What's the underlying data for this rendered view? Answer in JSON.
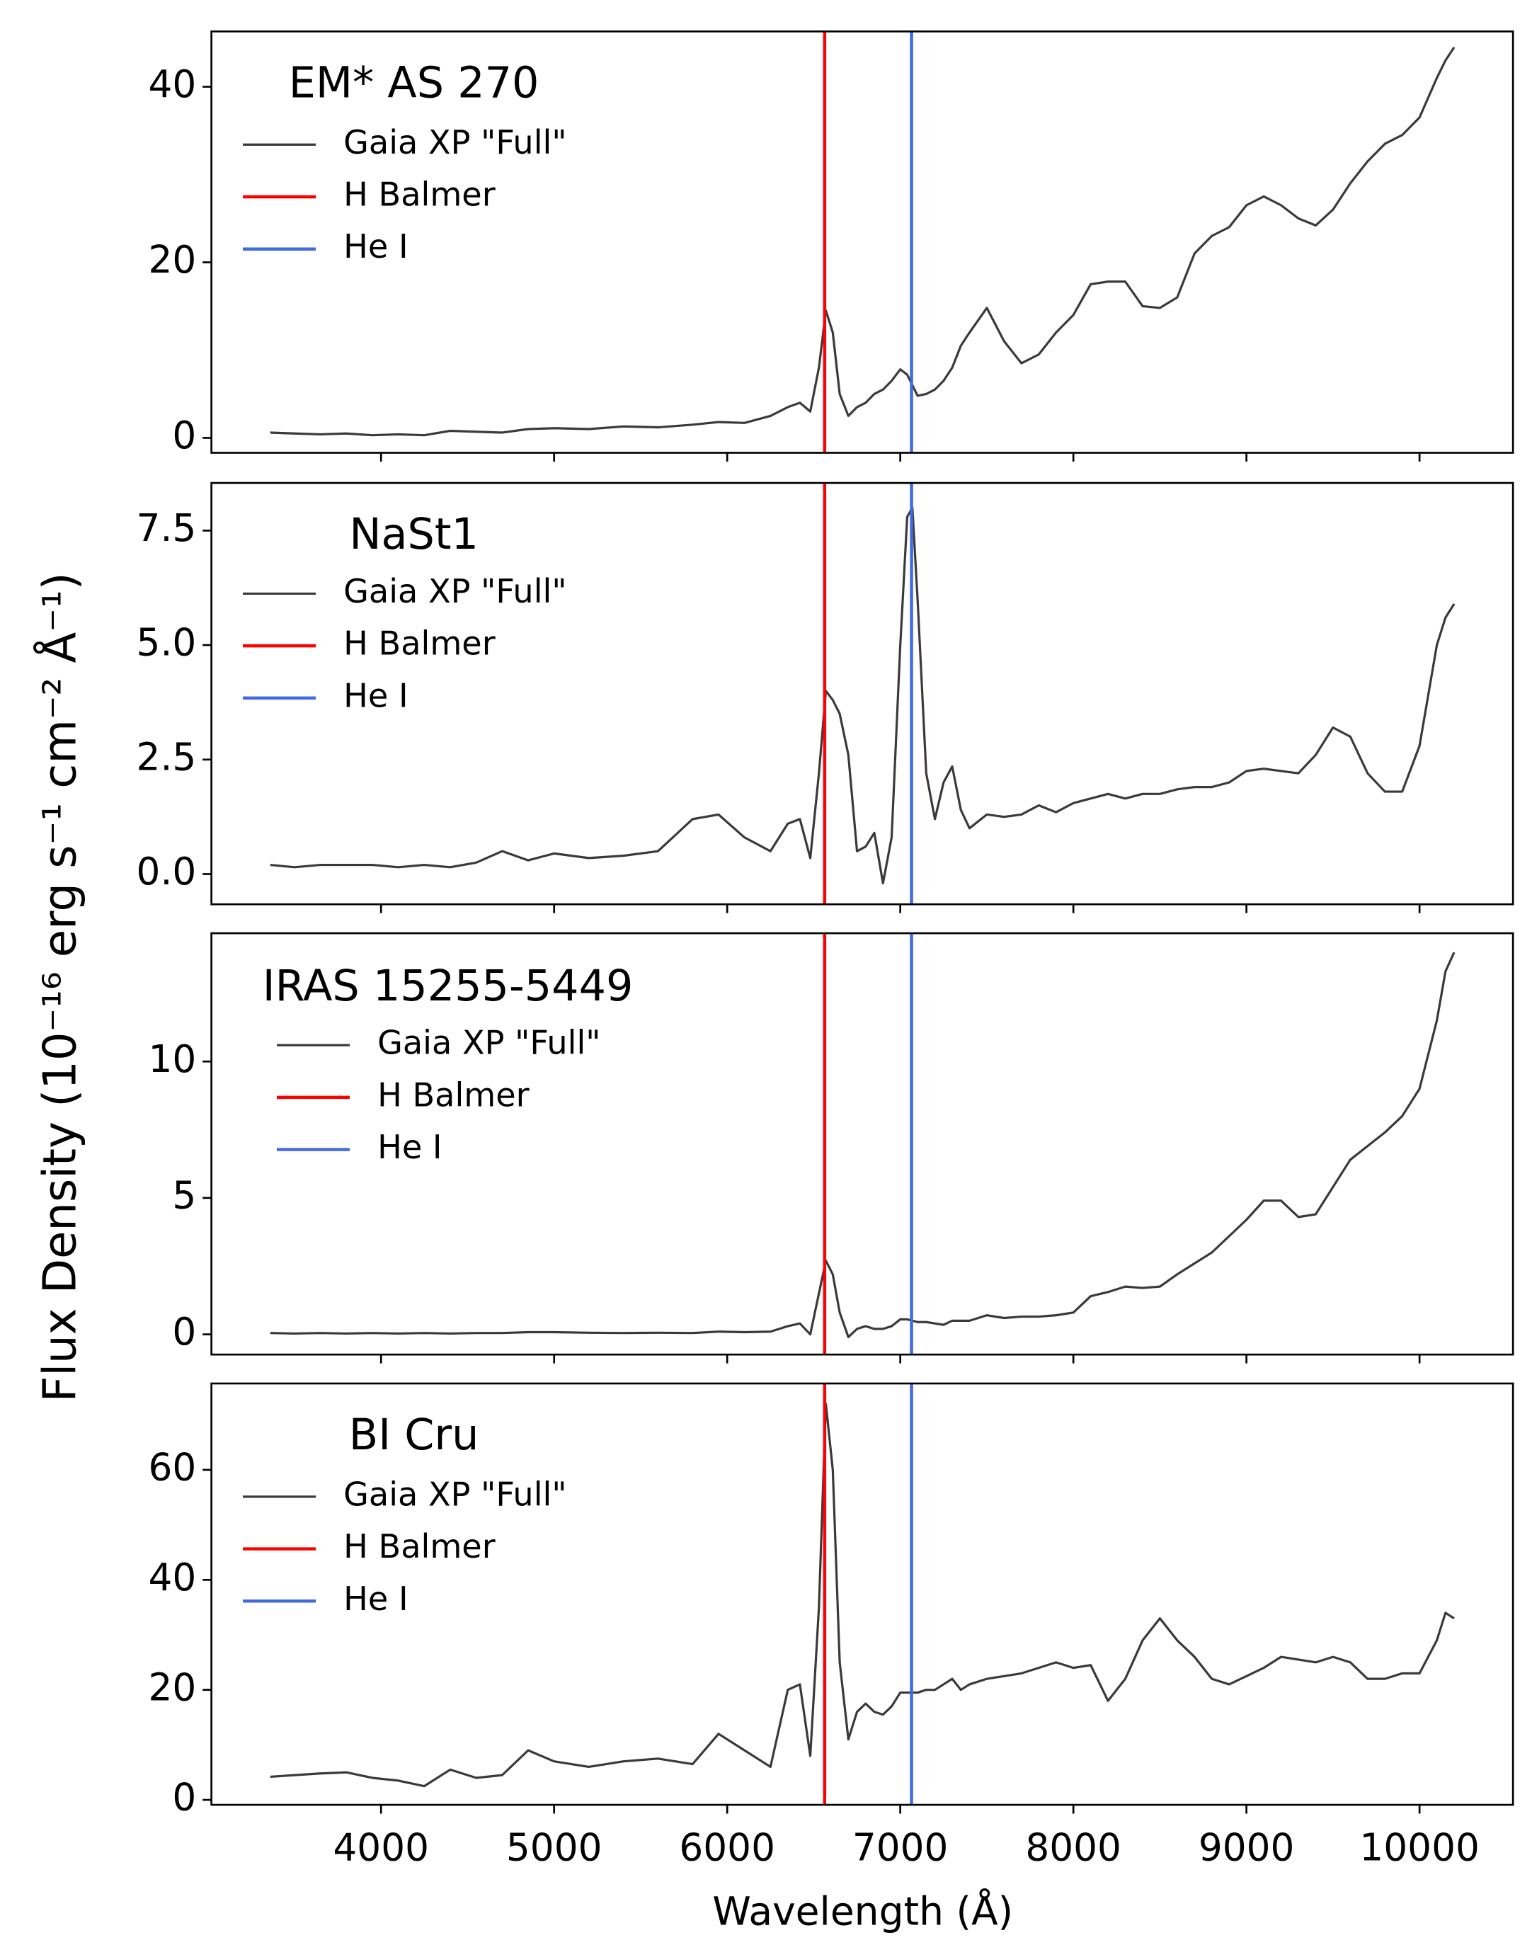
{
  "xlabel": "Wavelength (Å)",
  "ylabel": "Flux Density (10⁻¹⁶ erg s⁻¹ cm⁻² Å⁻¹)",
  "chart_data": [
    {
      "type": "line",
      "title": "EM* AS 270",
      "legend_loc": "upper left",
      "xlim": [
        3020,
        10540
      ],
      "xticks": [
        4000,
        5000,
        6000,
        7000,
        8000,
        9000,
        10000
      ],
      "ylim": [
        -1.7,
        46.3
      ],
      "yticks": [
        0,
        20,
        40
      ],
      "x": [
        3360,
        3500,
        3650,
        3800,
        3950,
        4100,
        4250,
        4400,
        4550,
        4700,
        4850,
        5000,
        5200,
        5400,
        5600,
        5800,
        5950,
        6100,
        6250,
        6350,
        6420,
        6480,
        6530,
        6570,
        6610,
        6650,
        6700,
        6750,
        6800,
        6850,
        6900,
        6950,
        7000,
        7040,
        7070,
        7100,
        7150,
        7200,
        7250,
        7300,
        7350,
        7400,
        7500,
        7600,
        7700,
        7800,
        7900,
        8000,
        8100,
        8200,
        8300,
        8400,
        8500,
        8600,
        8700,
        8800,
        8900,
        9000,
        9100,
        9200,
        9300,
        9400,
        9500,
        9600,
        9700,
        9800,
        9900,
        10000,
        10100,
        10150,
        10200
      ],
      "series": [
        {
          "name": "Gaia XP \"Full\"",
          "color": "#3a3a3a",
          "values": [
            0.6,
            0.5,
            0.4,
            0.5,
            0.3,
            0.4,
            0.3,
            0.8,
            0.7,
            0.6,
            1,
            1.1,
            1.0,
            1.3,
            1.2,
            1.5,
            1.8,
            1.7,
            2.5,
            3.5,
            4,
            3,
            8,
            14.5,
            12,
            5,
            2.5,
            3.5,
            4,
            5,
            5.5,
            6.5,
            7.8,
            7.2,
            6,
            4.8,
            5,
            5.5,
            6.5,
            8,
            10.5,
            12,
            14.8,
            11,
            8.5,
            9.5,
            12,
            14,
            17.5,
            17.8,
            17.8,
            15,
            14.8,
            16,
            21,
            23,
            24,
            26.5,
            27.5,
            26.5,
            25,
            24.2,
            26,
            29,
            31.5,
            33.5,
            34.5,
            36.5,
            41,
            43,
            44.5
          ]
        }
      ],
      "vlines": [
        {
          "name": "H Balmer",
          "color": "#ff0000",
          "x": 6563
        },
        {
          "name": "He I",
          "color": "#4169e1",
          "x": 7065
        }
      ]
    },
    {
      "type": "line",
      "title": "NaSt1",
      "legend_loc": "upper left",
      "xlim": [
        3020,
        10540
      ],
      "xticks": [
        4000,
        5000,
        6000,
        7000,
        8000,
        9000,
        10000
      ],
      "ylim": [
        -0.66,
        8.54
      ],
      "yticks": [
        {
          "value": 0,
          "label": "0.0"
        },
        2.5,
        {
          "value": 5,
          "label": "5.0"
        },
        7.5
      ],
      "x": [
        3360,
        3500,
        3650,
        3800,
        3950,
        4100,
        4250,
        4400,
        4550,
        4700,
        4850,
        5000,
        5200,
        5400,
        5600,
        5800,
        5950,
        6100,
        6250,
        6350,
        6420,
        6480,
        6530,
        6570,
        6610,
        6650,
        6700,
        6750,
        6800,
        6850,
        6900,
        6950,
        7000,
        7040,
        7070,
        7100,
        7150,
        7200,
        7250,
        7300,
        7350,
        7400,
        7500,
        7600,
        7700,
        7800,
        7900,
        8000,
        8100,
        8200,
        8300,
        8400,
        8500,
        8600,
        8700,
        8800,
        8900,
        9000,
        9100,
        9200,
        9300,
        9400,
        9500,
        9600,
        9700,
        9800,
        9900,
        10000,
        10100,
        10150,
        10200
      ],
      "series": [
        {
          "name": "Gaia XP \"Full\"",
          "color": "#3a3a3a",
          "values": [
            0.2,
            0.15,
            0.2,
            0.2,
            0.2,
            0.15,
            0.2,
            0.15,
            0.25,
            0.5,
            0.3,
            0.45,
            0.35,
            0.4,
            0.5,
            1.2,
            1.3,
            0.8,
            0.5,
            1.1,
            1.2,
            0.35,
            2.2,
            4.0,
            3.8,
            3.5,
            2.6,
            0.5,
            0.6,
            0.9,
            -0.2,
            0.8,
            5,
            7.8,
            8,
            6,
            2.2,
            1.2,
            2.0,
            2.35,
            1.4,
            1.0,
            1.3,
            1.25,
            1.3,
            1.5,
            1.35,
            1.55,
            1.65,
            1.75,
            1.65,
            1.75,
            1.75,
            1.85,
            1.9,
            1.9,
            2.0,
            2.25,
            2.3,
            2.25,
            2.2,
            2.6,
            3.2,
            3.0,
            2.2,
            1.8,
            1.8,
            2.8,
            5.0,
            5.6,
            5.9
          ]
        }
      ],
      "vlines": [
        {
          "name": "H Balmer",
          "color": "#ff0000",
          "x": 6563
        },
        {
          "name": "He I",
          "color": "#4169e1",
          "x": 7065
        }
      ]
    },
    {
      "type": "line",
      "title": "IRAS 15255-5449",
      "legend_loc": "upper left",
      "xlim": [
        3020,
        10540
      ],
      "xticks": [
        4000,
        5000,
        6000,
        7000,
        8000,
        9000,
        10000
      ],
      "ylim": [
        -0.74,
        14.7
      ],
      "yticks": [
        0,
        5,
        10
      ],
      "x": [
        3360,
        3500,
        3650,
        3800,
        3950,
        4100,
        4250,
        4400,
        4550,
        4700,
        4850,
        5000,
        5200,
        5400,
        5600,
        5800,
        5950,
        6100,
        6250,
        6350,
        6420,
        6480,
        6530,
        6570,
        6610,
        6650,
        6700,
        6750,
        6800,
        6850,
        6900,
        6950,
        7000,
        7040,
        7070,
        7100,
        7150,
        7200,
        7250,
        7300,
        7350,
        7400,
        7500,
        7600,
        7700,
        7800,
        7900,
        8000,
        8100,
        8200,
        8300,
        8400,
        8500,
        8600,
        8700,
        8800,
        8900,
        9000,
        9100,
        9200,
        9300,
        9400,
        9500,
        9600,
        9700,
        9800,
        9900,
        10000,
        10100,
        10150,
        10200
      ],
      "series": [
        {
          "name": "Gaia XP \"Full\"",
          "color": "#3a3a3a",
          "values": [
            0.05,
            0.03,
            0.05,
            0.03,
            0.05,
            0.03,
            0.05,
            0.03,
            0.05,
            0.05,
            0.08,
            0.08,
            0.06,
            0.05,
            0.06,
            0.05,
            0.1,
            0.08,
            0.1,
            0.3,
            0.4,
            0.0,
            1.5,
            2.7,
            2.2,
            0.8,
            -0.1,
            0.2,
            0.3,
            0.2,
            0.2,
            0.3,
            0.55,
            0.55,
            0.5,
            0.45,
            0.45,
            0.4,
            0.35,
            0.5,
            0.5,
            0.5,
            0.7,
            0.6,
            0.65,
            0.65,
            0.7,
            0.8,
            1.4,
            1.55,
            1.75,
            1.7,
            1.75,
            2.2,
            2.6,
            3.0,
            3.6,
            4.2,
            4.9,
            4.9,
            4.3,
            4.4,
            5.4,
            6.4,
            6.9,
            7.4,
            8.0,
            9.0,
            11.5,
            13.3,
            14.0
          ]
        }
      ],
      "vlines": [
        {
          "name": "H Balmer",
          "color": "#ff0000",
          "x": 6563
        },
        {
          "name": "He I",
          "color": "#4169e1",
          "x": 7065
        }
      ]
    },
    {
      "type": "line",
      "title": "BI Cru",
      "legend_loc": "upper left",
      "xlim": [
        3020,
        10540
      ],
      "xticks": [
        4000,
        5000,
        6000,
        7000,
        8000,
        9000,
        10000
      ],
      "ylim": [
        -0.9,
        75.7
      ],
      "yticks": [
        0,
        20,
        40,
        60
      ],
      "x": [
        3360,
        3500,
        3650,
        3800,
        3950,
        4100,
        4250,
        4400,
        4550,
        4700,
        4850,
        5000,
        5200,
        5400,
        5600,
        5800,
        5950,
        6100,
        6250,
        6350,
        6420,
        6480,
        6530,
        6570,
        6610,
        6650,
        6700,
        6750,
        6800,
        6850,
        6900,
        6950,
        7000,
        7040,
        7070,
        7100,
        7150,
        7200,
        7250,
        7300,
        7350,
        7400,
        7500,
        7600,
        7700,
        7800,
        7900,
        8000,
        8100,
        8200,
        8300,
        8400,
        8500,
        8600,
        8700,
        8800,
        8900,
        9000,
        9100,
        9200,
        9300,
        9400,
        9500,
        9600,
        9700,
        9800,
        9900,
        10000,
        10100,
        10150,
        10200
      ],
      "series": [
        {
          "name": "Gaia XP \"Full\"",
          "color": "#3a3a3a",
          "values": [
            4.2,
            4.5,
            4.8,
            5,
            4,
            3.5,
            2.5,
            5.5,
            4,
            4.5,
            9,
            7,
            6,
            7,
            7.5,
            6.5,
            12,
            9,
            6,
            20,
            21,
            8,
            35,
            72,
            60,
            25,
            11,
            16,
            17.5,
            16,
            15.5,
            17,
            19.5,
            19.5,
            19.5,
            19.5,
            20,
            20,
            21,
            22,
            20,
            21,
            22,
            22.5,
            23,
            24,
            25,
            24,
            24.5,
            18,
            22,
            29,
            33,
            29,
            26,
            22,
            21,
            22.5,
            24,
            26,
            25.5,
            25,
            26,
            25,
            22,
            22,
            23,
            23,
            29,
            34,
            33
          ]
        }
      ],
      "vlines": [
        {
          "name": "H Balmer",
          "color": "#ff0000",
          "x": 6563
        },
        {
          "name": "He I",
          "color": "#4169e1",
          "x": 7065
        }
      ]
    }
  ]
}
